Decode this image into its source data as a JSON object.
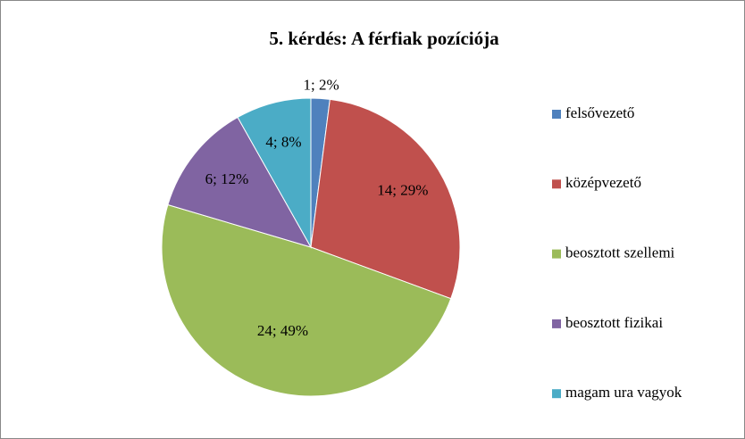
{
  "chart_data": {
    "type": "pie",
    "title": "5. kérdés: A férfiak pozíciója",
    "categories": [
      "felsővezető",
      "középvezető",
      "beosztott szellemi",
      "beosztott fizikai",
      "magam ura vagyok"
    ],
    "values": [
      1,
      14,
      24,
      6,
      4
    ],
    "value_labels": [
      "1; 2%",
      "14; 29%",
      "24; 49%",
      "6; 12%",
      "4; 8%"
    ],
    "colors": [
      "#4f81bd",
      "#c0504d",
      "#9bbb59",
      "#8064a2",
      "#4bacc6"
    ],
    "legend": "right"
  }
}
